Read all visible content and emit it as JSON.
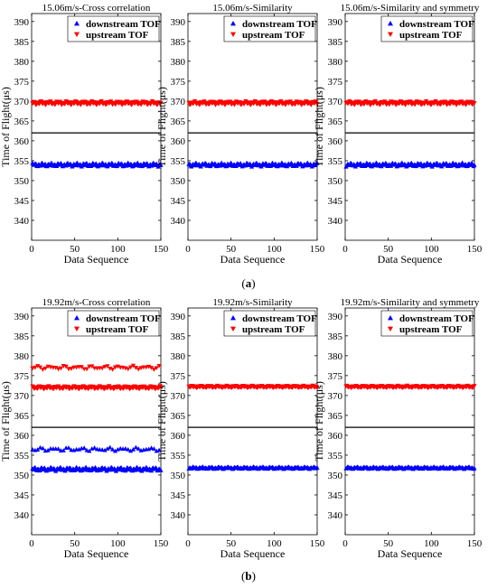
{
  "panels": [
    {
      "label": "(a)",
      "label_letter": "a"
    },
    {
      "label": "(b)",
      "label_letter": "b"
    }
  ],
  "chart_data": [
    {
      "type": "scatter",
      "title": "15.06m/s-Cross correlation",
      "xlabel": "Data Sequence",
      "ylabel": "Time of Flight(μs)",
      "xlim": [
        0,
        150
      ],
      "ylim": [
        335,
        392
      ],
      "xticks": [
        0,
        50,
        100,
        150
      ],
      "yticks": [
        340,
        345,
        350,
        355,
        360,
        365,
        370,
        375,
        380,
        385,
        390
      ],
      "legend": "top-center",
      "grid": false,
      "hline": 362,
      "points": 150,
      "series": [
        {
          "name": "downstream TOF",
          "marker": "triangle-up",
          "color": "#0000ff",
          "bands": [
            {
              "value": 354,
              "spread": 0.5,
              "phase": 0
            }
          ]
        },
        {
          "name": "upstream TOF",
          "marker": "triangle-down",
          "color": "#ff0000",
          "bands": [
            {
              "value": 369.5,
              "spread": 0.5,
              "phase": 1
            }
          ]
        }
      ]
    },
    {
      "type": "scatter",
      "title": "15.06m/s-Similarity",
      "xlabel": "Data Sequence",
      "ylabel": "Time of Flight(μs)",
      "xlim": [
        0,
        150
      ],
      "ylim": [
        335,
        392
      ],
      "xticks": [
        0,
        50,
        100,
        150
      ],
      "yticks": [
        340,
        345,
        350,
        355,
        360,
        365,
        370,
        375,
        380,
        385,
        390
      ],
      "legend": "top-center",
      "grid": false,
      "hline": 362,
      "points": 150,
      "series": [
        {
          "name": "downstream TOF",
          "marker": "triangle-up",
          "color": "#0000ff",
          "bands": [
            {
              "value": 354,
              "spread": 0.5,
              "phase": 2
            }
          ]
        },
        {
          "name": "upstream TOF",
          "marker": "triangle-down",
          "color": "#ff0000",
          "bands": [
            {
              "value": 369.5,
              "spread": 0.5,
              "phase": 3
            }
          ]
        }
      ]
    },
    {
      "type": "scatter",
      "title": "15.06m/s-Similarity and symmetry",
      "xlabel": "Data Sequence",
      "ylabel": "Time of Flight(μs)",
      "xlim": [
        0,
        150
      ],
      "ylim": [
        335,
        392
      ],
      "xticks": [
        0,
        50,
        100,
        150
      ],
      "yticks": [
        340,
        345,
        350,
        355,
        360,
        365,
        370,
        375,
        380,
        385,
        390
      ],
      "legend": "top-center",
      "grid": false,
      "hline": 362,
      "points": 150,
      "series": [
        {
          "name": "downstream TOF",
          "marker": "triangle-up",
          "color": "#0000ff",
          "bands": [
            {
              "value": 354,
              "spread": 0.5,
              "phase": 4
            }
          ]
        },
        {
          "name": "upstream TOF",
          "marker": "triangle-down",
          "color": "#ff0000",
          "bands": [
            {
              "value": 369.5,
              "spread": 0.5,
              "phase": 5
            }
          ]
        }
      ]
    },
    {
      "type": "scatter",
      "title": "19.92m/s-Cross correlation",
      "xlabel": "Data Sequence",
      "ylabel": "Time of Flight(μs)",
      "xlim": [
        0,
        150
      ],
      "ylim": [
        335,
        392
      ],
      "xticks": [
        0,
        50,
        100,
        150
      ],
      "yticks": [
        340,
        345,
        350,
        355,
        360,
        365,
        370,
        375,
        380,
        385,
        390
      ],
      "legend": "top-center",
      "grid": false,
      "hline": 362,
      "points": 150,
      "series": [
        {
          "name": "downstream TOF",
          "marker": "triangle-up",
          "color": "#0000ff",
          "bands": [
            {
              "value": 351.5,
              "spread": 0.5,
              "phase": 6
            },
            {
              "value": 356.5,
              "spread": 0.5,
              "phase": 7,
              "every": 3
            }
          ]
        },
        {
          "name": "upstream TOF",
          "marker": "triangle-down",
          "color": "#ff0000",
          "bands": [
            {
              "value": 372,
              "spread": 0.4,
              "phase": 8
            },
            {
              "value": 377,
              "spread": 0.5,
              "phase": 9,
              "every": 3
            }
          ]
        }
      ]
    },
    {
      "type": "scatter",
      "title": "19.92m/s-Similarity",
      "xlabel": "Data Sequence",
      "ylabel": "Time of Flight(μs)",
      "xlim": [
        0,
        150
      ],
      "ylim": [
        335,
        392
      ],
      "xticks": [
        0,
        50,
        100,
        150
      ],
      "yticks": [
        340,
        345,
        350,
        355,
        360,
        365,
        370,
        375,
        380,
        385,
        390
      ],
      "legend": "top-center",
      "grid": false,
      "hline": 362,
      "points": 150,
      "series": [
        {
          "name": "downstream TOF",
          "marker": "triangle-up",
          "color": "#0000ff",
          "bands": [
            {
              "value": 351.8,
              "spread": 0.3,
              "phase": 10
            }
          ]
        },
        {
          "name": "upstream TOF",
          "marker": "triangle-down",
          "color": "#ff0000",
          "bands": [
            {
              "value": 372.2,
              "spread": 0.3,
              "phase": 11
            }
          ]
        }
      ]
    },
    {
      "type": "scatter",
      "title": "19.92m/s-Similarity and symmetry",
      "xlabel": "Data Sequence",
      "ylabel": "Time of Flight(μs)",
      "xlim": [
        0,
        150
      ],
      "ylim": [
        335,
        392
      ],
      "xticks": [
        0,
        50,
        100,
        150
      ],
      "yticks": [
        340,
        345,
        350,
        355,
        360,
        365,
        370,
        375,
        380,
        385,
        390
      ],
      "legend": "top-center",
      "grid": false,
      "hline": 362,
      "points": 150,
      "series": [
        {
          "name": "downstream TOF",
          "marker": "triangle-up",
          "color": "#0000ff",
          "bands": [
            {
              "value": 351.8,
              "spread": 0.3,
              "phase": 12
            }
          ]
        },
        {
          "name": "upstream TOF",
          "marker": "triangle-down",
          "color": "#ff0000",
          "bands": [
            {
              "value": 372.2,
              "spread": 0.3,
              "phase": 13
            }
          ]
        }
      ]
    }
  ]
}
